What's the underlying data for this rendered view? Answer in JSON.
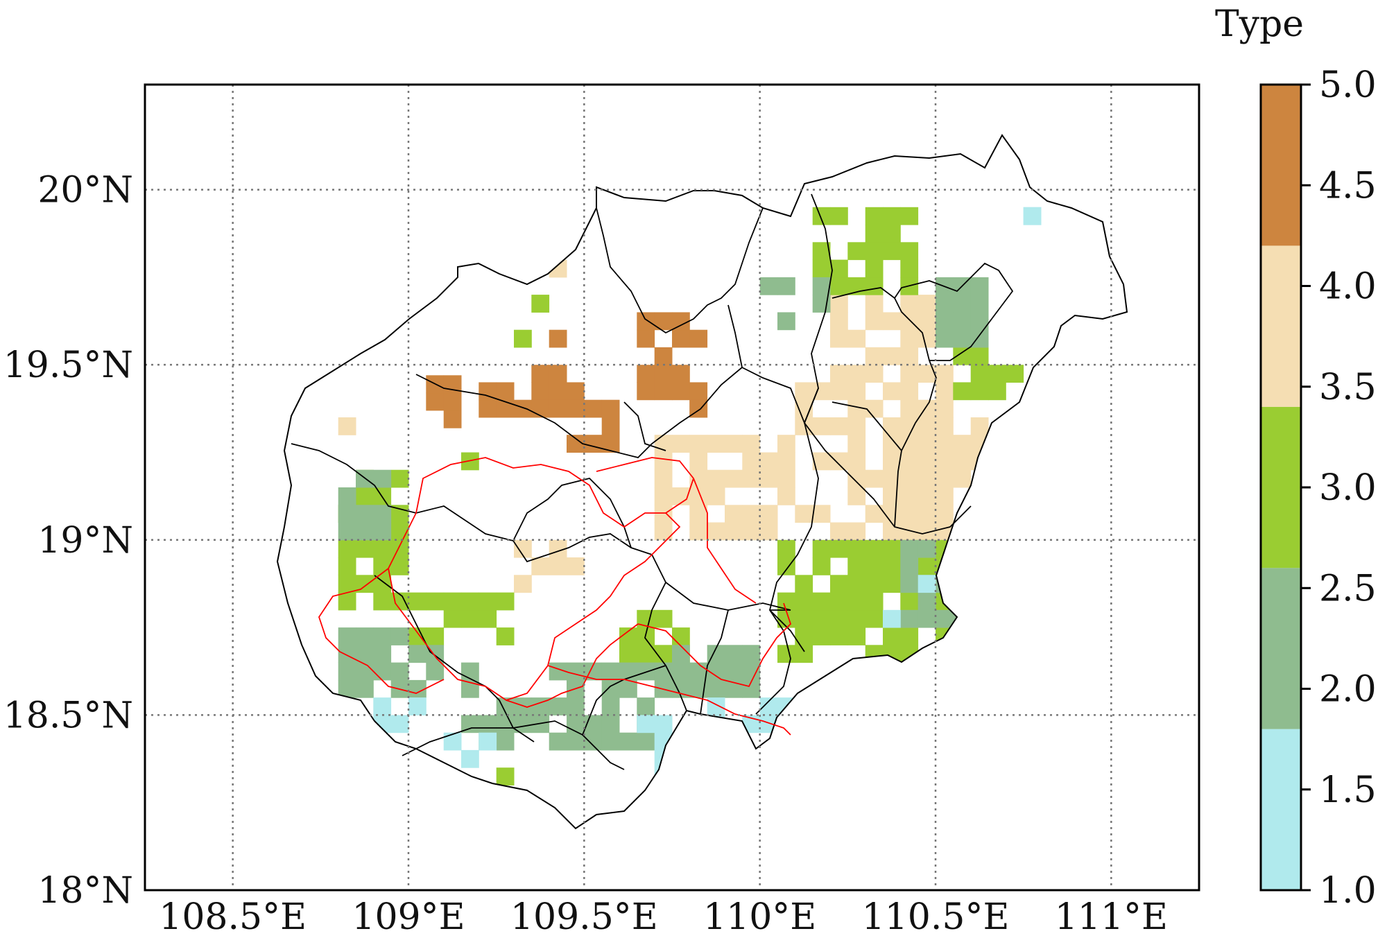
{
  "map": {
    "lon_ticks": [
      "108.5°E",
      "109°E",
      "109.5°E",
      "110°E",
      "110.5°E",
      "111°E"
    ],
    "lon_values": [
      108.5,
      109.0,
      109.5,
      110.0,
      110.5,
      111.0
    ],
    "lat_ticks": [
      "18°N",
      "18.5°N",
      "19°N",
      "19.5°N",
      "20°N"
    ],
    "lat_values": [
      18.0,
      18.5,
      19.0,
      19.5,
      20.0
    ],
    "lon_range": [
      108.25,
      111.25
    ],
    "lat_range": [
      18.0,
      20.3
    ],
    "grid": true,
    "grid_style": "dotted",
    "cell_size_deg": 0.05,
    "boundary_colors": {
      "admin": "#000000",
      "protected_area": "#ff0000"
    }
  },
  "colorbar": {
    "title": "Type",
    "range": [
      1.0,
      5.0
    ],
    "tick_labels": [
      "1.0",
      "1.5",
      "2.0",
      "2.5",
      "3.0",
      "3.5",
      "4.0",
      "4.5",
      "5.0"
    ],
    "tick_values": [
      1.0,
      1.5,
      2.0,
      2.5,
      3.0,
      3.5,
      4.0,
      4.5,
      5.0
    ],
    "classes": [
      {
        "type": 1,
        "color": "#b0eaed"
      },
      {
        "type": 2,
        "color": "#8fbc8f"
      },
      {
        "type": 3,
        "color": "#9acd32"
      },
      {
        "type": 4,
        "color": "#f5deb3"
      },
      {
        "type": 5,
        "color": "#cd853f"
      }
    ]
  },
  "clusters": [
    {
      "type": 5,
      "lon": [
        109.35,
        109.45
      ],
      "lat": [
        19.4,
        19.58
      ]
    },
    {
      "type": 5,
      "lon": [
        109.2,
        109.5
      ],
      "lat": [
        19.35,
        19.45
      ]
    },
    {
      "type": 5,
      "lon": [
        109.4,
        109.6
      ],
      "lat": [
        19.25,
        19.4
      ]
    },
    {
      "type": 5,
      "lon": [
        109.65,
        109.85
      ],
      "lat": [
        19.35,
        19.65
      ]
    },
    {
      "type": 5,
      "lon": [
        109.05,
        109.15
      ],
      "lat": [
        19.32,
        19.45
      ]
    },
    {
      "type": 4,
      "lon": [
        109.7,
        110.1
      ],
      "lat": [
        19.0,
        19.3
      ]
    },
    {
      "type": 4,
      "lon": [
        110.1,
        110.55
      ],
      "lat": [
        19.0,
        19.45
      ]
    },
    {
      "type": 4,
      "lon": [
        110.2,
        110.55
      ],
      "lat": [
        19.45,
        19.7
      ]
    },
    {
      "type": 4,
      "lon": [
        110.55,
        110.65
      ],
      "lat": [
        19.15,
        19.35
      ]
    },
    {
      "type": 4,
      "lon": [
        109.3,
        109.5
      ],
      "lat": [
        18.85,
        18.98
      ]
    },
    {
      "type": 3,
      "lon": [
        110.05,
        110.55
      ],
      "lat": [
        18.65,
        19.0
      ]
    },
    {
      "type": 3,
      "lon": [
        110.15,
        110.45
      ],
      "lat": [
        19.7,
        19.92
      ]
    },
    {
      "type": 3,
      "lon": [
        110.55,
        110.75
      ],
      "lat": [
        19.4,
        19.6
      ]
    },
    {
      "type": 3,
      "lon": [
        108.8,
        109.0
      ],
      "lat": [
        18.8,
        19.2
      ]
    },
    {
      "type": 3,
      "lon": [
        109.0,
        109.3
      ],
      "lat": [
        18.7,
        18.85
      ]
    },
    {
      "type": 3,
      "lon": [
        109.6,
        109.8
      ],
      "lat": [
        18.65,
        18.8
      ]
    },
    {
      "type": 2,
      "lon": [
        108.8,
        109.1
      ],
      "lat": [
        18.55,
        18.75
      ]
    },
    {
      "type": 2,
      "lon": [
        109.15,
        109.7
      ],
      "lat": [
        18.4,
        18.65
      ]
    },
    {
      "type": 2,
      "lon": [
        109.7,
        110.0
      ],
      "lat": [
        18.55,
        18.7
      ]
    },
    {
      "type": 2,
      "lon": [
        108.8,
        109.0
      ],
      "lat": [
        19.0,
        19.2
      ]
    },
    {
      "type": 2,
      "lon": [
        110.0,
        110.2
      ],
      "lat": [
        19.6,
        19.75
      ]
    },
    {
      "type": 2,
      "lon": [
        110.4,
        110.6
      ],
      "lat": [
        18.75,
        19.0
      ]
    },
    {
      "type": 2,
      "lon": [
        110.5,
        110.65
      ],
      "lat": [
        19.55,
        19.75
      ]
    },
    {
      "type": 1,
      "lon": [
        108.85,
        109.05
      ],
      "lat": [
        18.45,
        18.55
      ]
    },
    {
      "type": 1,
      "lon": [
        109.1,
        109.25
      ],
      "lat": [
        18.35,
        18.45
      ]
    },
    {
      "type": 1,
      "lon": [
        109.65,
        109.85
      ],
      "lat": [
        18.35,
        18.5
      ]
    },
    {
      "type": 1,
      "lon": [
        109.85,
        110.1
      ],
      "lat": [
        18.45,
        18.55
      ]
    }
  ],
  "single_cells": [
    {
      "type": 1,
      "lon": 110.75,
      "lat": 19.9
    },
    {
      "type": 1,
      "lon": 110.45,
      "lat": 18.85
    },
    {
      "type": 1,
      "lon": 110.35,
      "lat": 18.75
    },
    {
      "type": 1,
      "lon": 109.7,
      "lat": 18.3
    },
    {
      "type": 3,
      "lon": 109.25,
      "lat": 18.3
    },
    {
      "type": 4,
      "lon": 109.4,
      "lat": 19.75
    },
    {
      "type": 3,
      "lon": 109.35,
      "lat": 19.65
    },
    {
      "type": 3,
      "lon": 109.3,
      "lat": 19.55
    },
    {
      "type": 5,
      "lon": 109.8,
      "lat": 19.35
    },
    {
      "type": 4,
      "lon": 108.8,
      "lat": 19.3
    },
    {
      "type": 3,
      "lon": 109.15,
      "lat": 19.2
    }
  ]
}
